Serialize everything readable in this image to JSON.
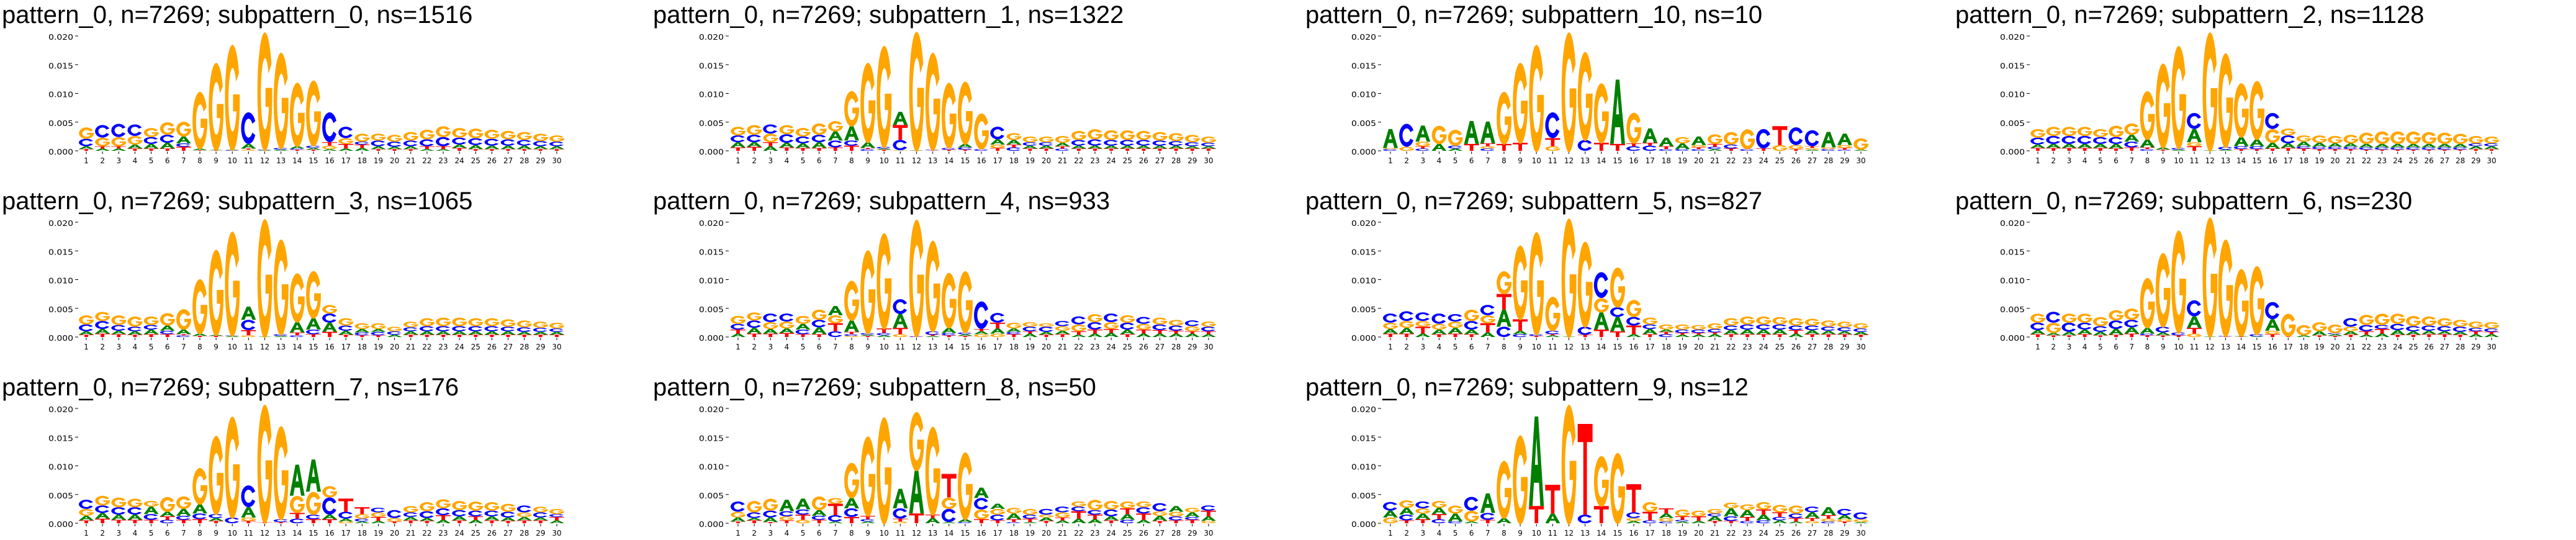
{
  "colors": {
    "A": "#008000",
    "C": "#0000ff",
    "G": "#ffa500",
    "T": "#ff0000"
  },
  "shared_axes": {
    "yticks": [
      "0.000",
      "0.005",
      "0.010",
      "0.015",
      "0.020"
    ],
    "xticks": [
      "1",
      "2",
      "3",
      "4",
      "5",
      "6",
      "7",
      "8",
      "9",
      "10",
      "11",
      "12",
      "13",
      "14",
      "15",
      "16",
      "17",
      "18",
      "19",
      "20",
      "21",
      "22",
      "23",
      "24",
      "25",
      "26",
      "27",
      "28",
      "29",
      "30"
    ]
  },
  "chart_data": [
    {
      "type": "logo",
      "title": "pattern_0, n=7269; subpattern_0, ns=1516",
      "ylim": [
        0,
        0.021
      ],
      "unit": 0.0001,
      "stacks": [
        "T3 A5 C13 G20",
        "A4 T4 G15 C22",
        "A4 T4 G16 C23",
        "T4 A7 G15 C20",
        "T4 A8 C12 G16",
        "T4 A10 C14 G22",
        "T7 C6 A12 G26",
        "T1 A3 G100",
        "T1 A1 G153",
        "C1 A1 G185",
        "G2 T2 A8 C55",
        "A1 C1 G207",
        "A2 C3 G168",
        "T2 C2 A4 G112",
        "T2 A3 C4 G115",
        "A3 G6 T6 C52",
        "A4 T8 G10 C20",
        "A5 T6 C5 G14",
        "T3 A5 C10 G12",
        "T3 A4 C9 G12",
        "T3 A5 C10 G15",
        "A3 T5 C12 G17",
        "A3 T5 C16 G19",
        "T5 A6 C12 G17",
        "T3 A7 C12 G17",
        "T3 A6 C12 G16",
        "T3 A6 C11 G15",
        "T3 A6 C10 G14",
        "T3 A5 C9 G13",
        "T3 A5 C8 G11"
      ]
    },
    {
      "type": "logo",
      "title": "pattern_0, n=7269; subpattern_1, ns=1322",
      "ylim": [
        0,
        0.021
      ],
      "unit": 0.0001,
      "stacks": [
        "T6 A9 C12 G15",
        "T7 A8 C13 G17",
        "A8 T7 G15 C16",
        "T6 A8 C15 G16",
        "T5 A8 C12 G15",
        "T5 A10 C13 G20",
        "T6 C12 A16 G18",
        "T9 C9 A25 G62",
        "C3 T2 A10 G140",
        "T2 A2 C3 G178",
        "G1 C18 T26 A23",
        "A1 G209",
        "T1 C1 G171",
        "T2 C3 G115",
        "T2 C4 A6 G110",
        "C3 G63",
        "T5 G6 A9 C22",
        "C6 T5 A8 G12",
        "T4 A5 C6 G10",
        "T4 A5 C6 G10",
        "C4 T4 A6 G12",
        "T4 A5 C10 G16",
        "T4 A5 C11 G18",
        "T4 A5 C10 G17",
        "T4 A5 C10 G17",
        "T4 A5 C10 G16",
        "T4 A5 C9 G15",
        "T4 A5 C8 G14",
        "T4 A4 C7 G13",
        "T4 A4 C6 G11"
      ]
    },
    {
      "type": "logo",
      "title": "pattern_0, n=7269; subpattern_10, ns=10",
      "ylim": [
        0,
        0.021
      ],
      "unit": 0.0001,
      "stacks": [
        "C3 G2 A33",
        "G7 C40",
        "C4 T4 G8 A28",
        "A12 G32",
        "A4 C5 G28",
        "T12 A40",
        "C4 G4 T5 A38",
        "T12 G92",
        "T14 G141",
        "G187",
        "G8 T14 C45",
        "G209",
        "C19 G155",
        "T14 G105",
        "T12 A112",
        "C8 T5 G54",
        "C9 T5 A25",
        "C3 T5 A15",
        "C3 A10 G11",
        "C3 T3 G4 A15",
        "A3 C4 T5 G17",
        "T4 C7 G22",
        "C3 G35",
        "T4 C34",
        "G10 T33",
        "T3 G7 C31",
        "A2 G3 T3 C28",
        "C3 G3 A27",
        "C2 T3 G5 A20",
        "A2 G20"
      ]
    },
    {
      "type": "logo",
      "title": "pattern_0, n=7269; subpattern_2, ns=1128",
      "ylim": [
        0,
        0.021
      ],
      "unit": 0.0001,
      "stacks": [
        "T5 A6 C12 G15",
        "T5 A7 C14 G16",
        "T5 A7 C14 G16",
        "T5 A7 C14 G16",
        "T5 A7 C12 G14",
        "T4 A8 C12 G20",
        "T6 C10 A12 G20",
        "C3 T3 A14 G85",
        "T2 A4 G148",
        "A2 C3 G180",
        "T8 G7 A23 C28",
        "A1 G208",
        "A2 C5 G165",
        "T3 C5 A16 G95",
        "T3 C5 A12 G103",
        "T4 A10 G24 C28",
        "T5 A8 C14 G12",
        "T4 C4 A8 G11",
        "T3 C4 A7 G13",
        "T3 C4 A6 G13",
        "T3 C4 A6 G15",
        "T2 C4 A6 G20",
        "T2 C4 A6 G22",
        "T2 C4 A6 G22",
        "T2 C4 A6 G22",
        "T2 C4 A6 G21",
        "T2 C4 A6 G20",
        "T2 C4 A6 G18",
        "T3 A5 C5 G13",
        "T3 A5 C5 G12"
      ]
    },
    {
      "type": "logo",
      "title": "pattern_0, n=7269; subpattern_3, ns=1065",
      "ylim": [
        0,
        0.021
      ],
      "unit": 0.0001,
      "stacks": [
        "T4 A6 C12 G16",
        "T6 A8 C14 G16",
        "T5 A6 C10 G17",
        "T4 A6 C8 G18",
        "T5 A8 C8 G15",
        "T5 C6 A9 G22",
        "C3 T2 A8 G36",
        "T2 A4 G96",
        "T2 A2 G150",
        "A2 C1 G183",
        "G3 T9 C18 A23",
        "A1 G207",
        "A2 C3 G167",
        "C3 T5 A18 G86",
        "T5 C8 A20 G83",
        "T9 A16 C16 G15",
        "T4 A7 C9 G13",
        "T3 C5 A6 G10",
        "T3 C6 A5 G10",
        "A4 C6 G8",
        "T4 A6 C7 G10",
        "T4 A6 C9 G14",
        "T4 A6 C9 G15",
        "T4 A6 C9 G15",
        "T4 A6 C9 G14",
        "T4 A6 C9 G14",
        "T4 A6 C8 G13",
        "T4 A5 C8 G12",
        "T4 A5 C7 G11",
        "T4 A5 C6 G10"
      ]
    },
    {
      "type": "logo",
      "title": "pattern_0, n=7269; subpattern_4, ns=933",
      "ylim": [
        0,
        0.021
      ],
      "unit": 0.0001,
      "stacks": [
        "A6 T7 C10 G14",
        "T6 A10 C13 G14",
        "T6 A8 G12 C15",
        "T7 A8 G12 C14",
        "T5 C8 A10 G14",
        "T5 A12 C13 G18",
        "C10 T14 G14 A16",
        "G2 C3 T4 A20 G70",
        "T2 A2 C3 G146",
        "A3 C4 T8 G168",
        "G5 T11 A24 C26",
        "C1 T1 G205",
        "A2 T2 C6 G160",
        "T3 C4 A9 G97",
        "T2 A3 C3 G108",
        "G5 A5 T4 C48",
        "G6 A9 T10 C17",
        "T5 C4 A6 G10",
        "A6 T4 C8 G8",
        "T4 A5 C9 G6",
        "T5 A6 G8 C9",
        "A4 T6 G12 C14",
        "A6 T7 C13 G14",
        "A7 T7 G12 C15",
        "T5 A8 C12 G13",
        "A6 T7 G10 C12",
        "A6 T6 C10 G12",
        "A6 T5 C9 G10",
        "A6 T4 G9 C10",
        "A5 T5 C8 G9"
      ]
    },
    {
      "type": "logo",
      "title": "pattern_0, n=7269; subpattern_5, ns=827",
      "ylim": [
        0,
        0.021
      ],
      "unit": 0.0001,
      "stacks": [
        "T6 A8 G11 C16",
        "T6 A10 G12 C17",
        "A6 T12 G10 C15",
        "T5 A8 G10 C18",
        "T6 A10 G11 C13",
        "T5 A8 C15 G20",
        "A8 T16 G14 C18",
        "C18 A30 T27 G40",
        "C5 A6 T20 G130",
        "T2 C3 G180",
        "A3 T2 C6 G60",
        "A1 G208",
        "T4 C14 G150",
        "T13 A30 G25 C45",
        "T10 A25 C17 G70",
        "A5 T15 C15 G30",
        "T5 A9 C8 G12",
        "C5 T4 A4 G9",
        "A4 T3 C6 G9",
        "A4 T3 C6 G8",
        "A5 T3 C6 G10",
        "T5 A7 C8 G13",
        "T5 A8 C9 G14",
        "T5 A8 C9 G14",
        "T5 A8 C9 G13",
        "A6 T6 C8 G13",
        "T5 A7 C8 G12",
        "T5 A6 C7 G11",
        "T5 A5 C7 G10",
        "T4 A5 C6 G9"
      ]
    },
    {
      "type": "logo",
      "title": "pattern_0, n=7269; subpattern_6, ns=230",
      "ylim": [
        0,
        0.021
      ],
      "unit": 0.0001,
      "stacks": [
        "T5 A7 C13 G16",
        "T3 A4 G18 C19",
        "T3 A6 C16 G16",
        "T5 A8 C12 G16",
        "T3 A6 C10 G16",
        "T4 A10 C15 G18",
        "T6 A11 C13 G20",
        "T3 C3 A10 G88",
        "T3 A5 C10 G130",
        "T3 C5 G180",
        "G6 T10 A20 C28",
        "A1 G210",
        "T1 C1 G170",
        "T1 A1 G118",
        "A1 C4 G120",
        "T5 G6 A20 C30",
        "T1 G40",
        "A3 G18",
        "T3 A7 G16",
        "T2 A3 C2 G15",
        "T4 A6 G8 C15",
        "A4 T6 C11 G18",
        "A6 T8 C7 G20",
        "T4 A8 C11 G18",
        "T4 A6 C9 G18",
        "T5 A6 C9 G16",
        "T5 A5 C9 G14",
        "T4 A5 C9 G12",
        "A5 T5 C6 G11",
        "A5 T4 C6 G11"
      ]
    },
    {
      "type": "logo",
      "title": "pattern_0, n=7269; subpattern_7, ns=176",
      "ylim": [
        0,
        0.021
      ],
      "unit": 0.0001,
      "stacks": [
        "T5 A8 G12 C16",
        "T8 A10 C13 G17",
        "T6 A9 C13 G17",
        "T6 A9 C13 G15",
        "T6 C10 A13 G10",
        "C6 T6 A8 G26",
        "T6 C7 A12 G22",
        "T7 C10 A16 G64",
        "T4 A5 C7 G138",
        "C10 G178",
        "T4 G6 A18 C38",
        "T2 G207",
        "T2 C5 G164",
        "C8 T10 G30 A54",
        "T7 C8 G40 A56",
        "T7 A8 C30 G20",
        "G3 A5 C12 T23",
        "A3 C5 G8 T12",
        "A4 T7 G8 C8",
        "T3 G6 C14",
        "T5 A6 C8 G11",
        "T4 A5 C12 G16",
        "A6 T8 C12 G16",
        "T5 A7 C11 G16",
        "A6 T6 C10 G16",
        "T5 A7 C10 G15",
        "T4 A6 C10 G14",
        "T5 A6 G8 C12",
        "T5 A5 C9 G10",
        "A5 T6 C5 G9"
      ]
    },
    {
      "type": "logo",
      "title": "pattern_0, n=7269; subpattern_8, ns=50",
      "ylim": [
        0,
        0.021
      ],
      "unit": 0.0001,
      "stacks": [
        "T3 A7 G10 C18",
        "T5 A4 C10 G20",
        "T2 A8 C12 G21",
        "T5 G7 C9 A20",
        "G6 T9 C9 A19",
        "T6 C7 A10 G24",
        "A3 C11 T20 G10",
        "T11 C15 A18 G62",
        "A3 C4 T6 G140",
        "G187",
        "G3 T5 C18 A34",
        "T17 A75 G103",
        "A9 T6 G155",
        "A2 C23 G20 T41",
        "C2 A5 G118",
        "T7 G17 C20 A18",
        "T5 C10 G10 A9",
        "C2 T5 A10 G10",
        "A2 T6 C7 G10",
        "T4 A6 G5 C10",
        "A5 T5 G9 C10",
        "A8 T13 C8 G9",
        "A7 T8 C8 G18",
        "T5 A7 C12 G15",
        "C6 A10 T10 G12",
        "A6 T11 C11 G10",
        "T4 A9 G8 C14",
        "T5 C7 G8 A10",
        "T6 C5 A8 G8",
        "G4 A8 T10 C9"
      ]
    },
    {
      "type": "logo",
      "title": "pattern_0, n=7269; subpattern_9, ns=12",
      "ylim": [
        0,
        0.021
      ],
      "unit": 0.0001,
      "stacks": [
        "G10 A12 C15",
        "T5 C10 A12 G13",
        "T7 A10 G9 C12",
        "C7 T9 A11 G12",
        "C3 A14 G14",
        "A3 G19 C24",
        "T6 C12 A34",
        "A9 G101",
        "G155",
        "T30 A156",
        "A17 T50",
        "G209",
        "C15 T158",
        "T30 G88",
        "G124",
        "A4 G5 C10 T49",
        "C5 T15 G17",
        "C3 G6 A8 T9",
        "A3 C3 T6 G12",
        "A4 T8 G10",
        "T4 A8 C5 G8",
        "T4 C8 A14 G10",
        "C4 T7 A12 G10",
        "C5 A10 T9 G13",
        "A5 C6 T8 G13",
        "A3 T6 C8 G14",
        "G4 T5 A10 C10",
        "C3 G5 T6 A14",
        "T3 G4 A7 C11",
        "A2 G5 C12"
      ]
    }
  ]
}
